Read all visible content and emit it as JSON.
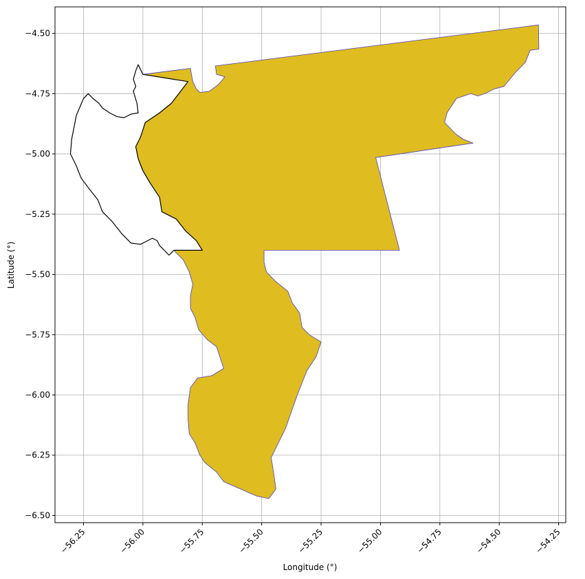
{
  "chart_data": {
    "type": "map",
    "xlabel": "Longitude (°)",
    "ylabel": "Latitude (°)",
    "xlim": [
      -56.37,
      -54.22
    ],
    "ylim": [
      -6.53,
      -4.39
    ],
    "grid": true,
    "xticks": [
      -56.25,
      -56.0,
      -55.75,
      -55.5,
      -55.25,
      -55.0,
      -54.75,
      -54.5,
      -54.25
    ],
    "xtick_labels": [
      "−56.25",
      "−56.00",
      "−55.75",
      "−55.50",
      "−55.25",
      "−55.00",
      "−54.75",
      "−54.50",
      "−54.25"
    ],
    "yticks": [
      -4.5,
      -4.75,
      -5.0,
      -5.25,
      -5.5,
      -5.75,
      -6.0,
      -6.25,
      -6.5
    ],
    "ytick_labels": [
      "−4.50",
      "−4.75",
      "−5.00",
      "−5.25",
      "−5.50",
      "−5.75",
      "−6.00",
      "−6.25",
      "−6.50"
    ],
    "regions": [
      {
        "fill": "#DFBC20",
        "stroke": "#4B3FC0",
        "points": [
          [
            -56.0,
            -4.67
          ],
          [
            -55.8,
            -4.645
          ],
          [
            -55.79,
            -4.7
          ],
          [
            -55.775,
            -4.73
          ],
          [
            -55.76,
            -4.745
          ],
          [
            -55.72,
            -4.74
          ],
          [
            -55.68,
            -4.71
          ],
          [
            -55.655,
            -4.68
          ],
          [
            -55.69,
            -4.67
          ],
          [
            -55.695,
            -4.635
          ],
          [
            -54.335,
            -4.465
          ],
          [
            -54.333,
            -4.565
          ],
          [
            -54.37,
            -4.57
          ],
          [
            -54.39,
            -4.62
          ],
          [
            -54.43,
            -4.66
          ],
          [
            -54.48,
            -4.72
          ],
          [
            -54.52,
            -4.73
          ],
          [
            -54.56,
            -4.75
          ],
          [
            -54.59,
            -4.76
          ],
          [
            -54.62,
            -4.75
          ],
          [
            -54.68,
            -4.77
          ],
          [
            -54.7,
            -4.8
          ],
          [
            -54.72,
            -4.83
          ],
          [
            -54.73,
            -4.87
          ],
          [
            -54.7,
            -4.9
          ],
          [
            -54.68,
            -4.92
          ],
          [
            -54.65,
            -4.94
          ],
          [
            -54.61,
            -4.955
          ],
          [
            -55.02,
            -5.015
          ],
          [
            -54.92,
            -5.4
          ],
          [
            -55.49,
            -5.4
          ],
          [
            -55.49,
            -5.45
          ],
          [
            -55.48,
            -5.49
          ],
          [
            -55.44,
            -5.53
          ],
          [
            -55.39,
            -5.57
          ],
          [
            -55.37,
            -5.62
          ],
          [
            -55.34,
            -5.66
          ],
          [
            -55.33,
            -5.72
          ],
          [
            -55.3,
            -5.75
          ],
          [
            -55.25,
            -5.78
          ],
          [
            -55.27,
            -5.84
          ],
          [
            -55.31,
            -5.9
          ],
          [
            -55.35,
            -6.0
          ],
          [
            -55.4,
            -6.14
          ],
          [
            -55.46,
            -6.26
          ],
          [
            -55.45,
            -6.32
          ],
          [
            -55.44,
            -6.39
          ],
          [
            -55.47,
            -6.43
          ],
          [
            -55.52,
            -6.42
          ],
          [
            -55.59,
            -6.39
          ],
          [
            -55.66,
            -6.36
          ],
          [
            -55.69,
            -6.32
          ],
          [
            -55.74,
            -6.28
          ],
          [
            -55.76,
            -6.25
          ],
          [
            -55.78,
            -6.2
          ],
          [
            -55.805,
            -6.16
          ],
          [
            -55.81,
            -6.1
          ],
          [
            -55.81,
            -6.04
          ],
          [
            -55.8,
            -5.97
          ],
          [
            -55.77,
            -5.93
          ],
          [
            -55.71,
            -5.92
          ],
          [
            -55.66,
            -5.89
          ],
          [
            -55.69,
            -5.8
          ],
          [
            -55.73,
            -5.77
          ],
          [
            -55.765,
            -5.73
          ],
          [
            -55.78,
            -5.68
          ],
          [
            -55.8,
            -5.64
          ],
          [
            -55.8,
            -5.59
          ],
          [
            -55.79,
            -5.54
          ],
          [
            -55.805,
            -5.49
          ],
          [
            -55.83,
            -5.44
          ],
          [
            -55.87,
            -5.4
          ],
          [
            -55.75,
            -5.4
          ],
          [
            -55.775,
            -5.36
          ],
          [
            -55.82,
            -5.32
          ],
          [
            -55.86,
            -5.27
          ],
          [
            -55.92,
            -5.24
          ],
          [
            -55.93,
            -5.18
          ],
          [
            -55.97,
            -5.12
          ],
          [
            -56.0,
            -5.07
          ],
          [
            -56.02,
            -5.02
          ],
          [
            -56.03,
            -4.97
          ],
          [
            -56.01,
            -4.93
          ],
          [
            -55.99,
            -4.87
          ],
          [
            -55.93,
            -4.83
          ],
          [
            -55.88,
            -4.79
          ],
          [
            -55.81,
            -4.7
          ],
          [
            -56.0,
            -4.67
          ]
        ]
      },
      {
        "fill": "#FFFFFF",
        "stroke": "#000000",
        "points": [
          [
            -55.81,
            -4.7
          ],
          [
            -55.88,
            -4.79
          ],
          [
            -55.93,
            -4.83
          ],
          [
            -55.99,
            -4.87
          ],
          [
            -56.01,
            -4.93
          ],
          [
            -56.03,
            -4.97
          ],
          [
            -56.02,
            -5.02
          ],
          [
            -56.0,
            -5.07
          ],
          [
            -55.97,
            -5.12
          ],
          [
            -55.93,
            -5.18
          ],
          [
            -55.92,
            -5.24
          ],
          [
            -55.86,
            -5.27
          ],
          [
            -55.82,
            -5.32
          ],
          [
            -55.775,
            -5.36
          ],
          [
            -55.75,
            -5.4
          ],
          [
            -55.87,
            -5.4
          ],
          [
            -55.89,
            -5.42
          ],
          [
            -55.93,
            -5.38
          ],
          [
            -55.94,
            -5.36
          ],
          [
            -55.96,
            -5.35
          ],
          [
            -55.98,
            -5.36
          ],
          [
            -56.01,
            -5.375
          ],
          [
            -56.05,
            -5.37
          ],
          [
            -56.09,
            -5.33
          ],
          [
            -56.13,
            -5.28
          ],
          [
            -56.17,
            -5.24
          ],
          [
            -56.19,
            -5.19
          ],
          [
            -56.23,
            -5.14
          ],
          [
            -56.26,
            -5.1
          ],
          [
            -56.28,
            -5.05
          ],
          [
            -56.305,
            -5.0
          ],
          [
            -56.3,
            -4.94
          ],
          [
            -56.28,
            -4.84
          ],
          [
            -56.25,
            -4.77
          ],
          [
            -56.23,
            -4.75
          ],
          [
            -56.21,
            -4.77
          ],
          [
            -56.185,
            -4.79
          ],
          [
            -56.17,
            -4.81
          ],
          [
            -56.14,
            -4.83
          ],
          [
            -56.11,
            -4.845
          ],
          [
            -56.08,
            -4.85
          ],
          [
            -56.05,
            -4.835
          ],
          [
            -56.02,
            -4.83
          ],
          [
            -56.025,
            -4.79
          ],
          [
            -56.04,
            -4.74
          ],
          [
            -56.03,
            -4.72
          ],
          [
            -56.04,
            -4.69
          ],
          [
            -56.03,
            -4.655
          ],
          [
            -56.02,
            -4.63
          ],
          [
            -56.0,
            -4.67
          ],
          [
            -55.81,
            -4.7
          ]
        ]
      }
    ]
  }
}
